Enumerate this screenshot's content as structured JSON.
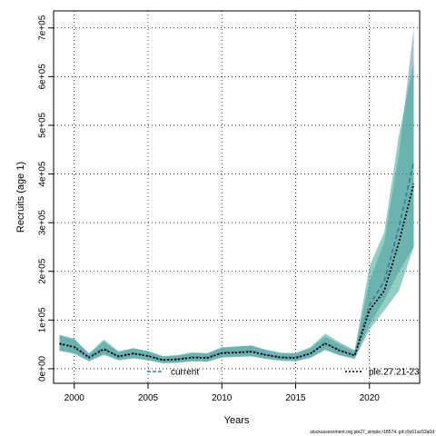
{
  "chart_data": {
    "type": "area",
    "xlabel": "Years",
    "ylabel": "Recruits (age 1)",
    "xlim": [
      1998.6,
      2023.4
    ],
    "ylim": [
      -30000,
      735000
    ],
    "x_ticks": [
      2000,
      2005,
      2010,
      2015,
      2020
    ],
    "x_tick_labels": [
      "2000",
      "2005",
      "2010",
      "2015",
      "2020"
    ],
    "y_ticks": [
      0,
      100000,
      200000,
      300000,
      400000,
      500000,
      600000,
      700000
    ],
    "y_tick_labels": [
      "0e+00",
      "1e+05",
      "2e+05",
      "3e+05",
      "4e+05",
      "5e+05",
      "6e+05",
      "7e+05"
    ],
    "grid": true,
    "legend_position": "bottom",
    "x": [
      1999,
      2000,
      2001,
      2002,
      2003,
      2004,
      2005,
      2006,
      2007,
      2008,
      2009,
      2010,
      2011,
      2012,
      2013,
      2014,
      2015,
      2016,
      2017,
      2018,
      2019,
      2020,
      2021,
      2022,
      2023
    ],
    "series": [
      {
        "name": "current",
        "color": "#3a78a0",
        "fill": "#5b8fb8",
        "line_style": "dashed",
        "values": [
          50000,
          46000,
          24000,
          42000,
          26000,
          32000,
          27000,
          18000,
          20000,
          24000,
          23000,
          33000,
          34000,
          36000,
          29000,
          24000,
          23000,
          32000,
          53000,
          38000,
          28000,
          130000,
          180000,
          290000,
          425000
        ],
        "lower": [
          36000,
          32000,
          16000,
          30000,
          18000,
          22000,
          18000,
          12000,
          13000,
          16000,
          15000,
          24000,
          25000,
          26000,
          21000,
          17000,
          16000,
          23000,
          40000,
          28000,
          21000,
          90000,
          140000,
          200000,
          250000
        ],
        "upper": [
          70000,
          62000,
          30000,
          56000,
          34000,
          42000,
          36000,
          25000,
          27000,
          32000,
          31000,
          43000,
          45000,
          47000,
          38000,
          32000,
          31000,
          42000,
          66000,
          50000,
          36000,
          180000,
          260000,
          440000,
          700000
        ]
      },
      {
        "name": "ple.27.21-23",
        "color": "#2e9e8c",
        "fill": "#3aa88e",
        "line_style": "dotted",
        "values": [
          52000,
          44000,
          23000,
          40000,
          25000,
          31000,
          26000,
          18000,
          19000,
          23000,
          22000,
          32000,
          33000,
          35000,
          28000,
          23000,
          22000,
          31000,
          52000,
          37000,
          27000,
          120000,
          160000,
          260000,
          380000
        ],
        "lower": [
          38000,
          30000,
          15000,
          28000,
          17000,
          21000,
          17000,
          11000,
          12000,
          15000,
          14000,
          23000,
          24000,
          25000,
          20000,
          16000,
          15000,
          22000,
          38000,
          27000,
          20000,
          80000,
          120000,
          160000,
          250000
        ],
        "upper": [
          68000,
          60000,
          32000,
          60000,
          36000,
          42000,
          36000,
          26000,
          28000,
          34000,
          32000,
          44000,
          46000,
          48000,
          39000,
          33000,
          32000,
          44000,
          72000,
          54000,
          38000,
          210000,
          280000,
          480000,
          630000
        ]
      }
    ]
  },
  "footer_note": "stockassessment.org,ple27_simple,r18574..git:c9c61ac53a0d"
}
